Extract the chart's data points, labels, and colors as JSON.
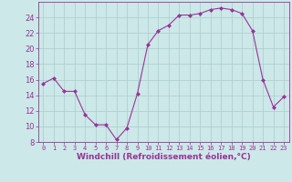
{
  "x": [
    0,
    1,
    2,
    3,
    4,
    5,
    6,
    7,
    8,
    9,
    10,
    11,
    12,
    13,
    14,
    15,
    16,
    17,
    18,
    19,
    20,
    21,
    22,
    23
  ],
  "y": [
    15.5,
    16.2,
    14.5,
    14.5,
    11.5,
    10.2,
    10.2,
    8.3,
    9.8,
    14.2,
    20.5,
    22.3,
    23.0,
    24.3,
    24.3,
    24.5,
    25.0,
    25.2,
    25.0,
    24.5,
    22.3,
    16.0,
    12.5,
    13.8
  ],
  "line_color": "#993399",
  "marker": "D",
  "marker_size": 2.0,
  "bg_color": "#cce8e8",
  "grid_color": "#aacccc",
  "xlabel": "Windchill (Refroidissement éolien,°C)",
  "ylabel": "",
  "ylim": [
    8,
    26
  ],
  "xlim": [
    -0.5,
    23.5
  ],
  "yticks": [
    8,
    10,
    12,
    14,
    16,
    18,
    20,
    22,
    24
  ],
  "xticks": [
    0,
    1,
    2,
    3,
    4,
    5,
    6,
    7,
    8,
    9,
    10,
    11,
    12,
    13,
    14,
    15,
    16,
    17,
    18,
    19,
    20,
    21,
    22,
    23
  ],
  "tick_color": "#993399",
  "label_color": "#993399",
  "font_size_xlabel": 6.5,
  "font_size_xticks": 5.0,
  "font_size_yticks": 6.0,
  "linewidth": 0.8
}
